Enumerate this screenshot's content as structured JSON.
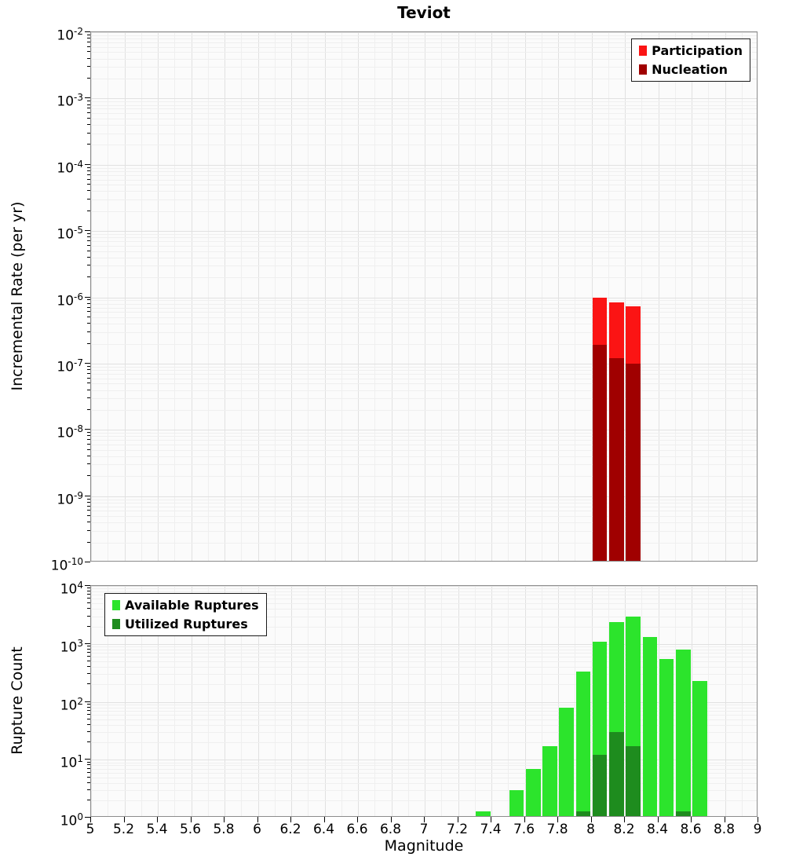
{
  "title": "Teviot",
  "chart_data": [
    {
      "type": "bar",
      "panel": "top",
      "ylabel": "Incremental Rate (per yr)",
      "yscale": "log",
      "ylim": [
        1e-10,
        0.01
      ],
      "xlim": [
        5,
        9
      ],
      "y_tick_exponents": [
        -2,
        -3,
        -4,
        -5,
        -6,
        -7,
        -8,
        -9,
        -10
      ],
      "bin_width": 0.1,
      "grid": true,
      "legend_position": "top-right",
      "series": [
        {
          "name": "Participation",
          "color": "#fb1414",
          "x": [
            8.0,
            8.1,
            8.2
          ],
          "values": [
            1e-06,
            8.3e-07,
            7.4e-07
          ]
        },
        {
          "name": "Nucleation",
          "color": "#a00000",
          "x": [
            8.0,
            8.1,
            8.2
          ],
          "values": [
            1.9e-07,
            1.2e-07,
            1e-07
          ]
        }
      ]
    },
    {
      "type": "bar",
      "panel": "bottom",
      "ylabel": "Rupture Count",
      "xlabel": "Magnitude",
      "yscale": "log",
      "ylim": [
        1,
        10000
      ],
      "xlim": [
        5,
        9
      ],
      "y_tick_exponents": [
        4,
        3,
        2,
        1,
        0
      ],
      "x_tick_labels": [
        "5",
        "5.2",
        "5.4",
        "5.6",
        "5.8",
        "6",
        "6.2",
        "6.4",
        "6.6",
        "6.8",
        "7",
        "7.2",
        "7.4",
        "7.6",
        "7.8",
        "8",
        "8.2",
        "8.4",
        "8.6",
        "8.8",
        "9"
      ],
      "bin_width": 0.1,
      "grid": true,
      "legend_position": "top-left",
      "series": [
        {
          "name": "Available Ruptures",
          "color": "#2ce42c",
          "x": [
            7.3,
            7.5,
            7.6,
            7.7,
            7.8,
            7.9,
            8.0,
            8.1,
            8.2,
            8.3,
            8.4,
            8.5,
            8.6
          ],
          "values": [
            1,
            3,
            7,
            17,
            80,
            330,
            1100,
            2400,
            3000,
            1300,
            550,
            800,
            230
          ]
        },
        {
          "name": "Utilized Ruptures",
          "color": "#1e8c1e",
          "x": [
            7.9,
            8.0,
            8.1,
            8.2,
            8.5
          ],
          "values": [
            1,
            12,
            30,
            17,
            1
          ]
        }
      ]
    }
  ]
}
